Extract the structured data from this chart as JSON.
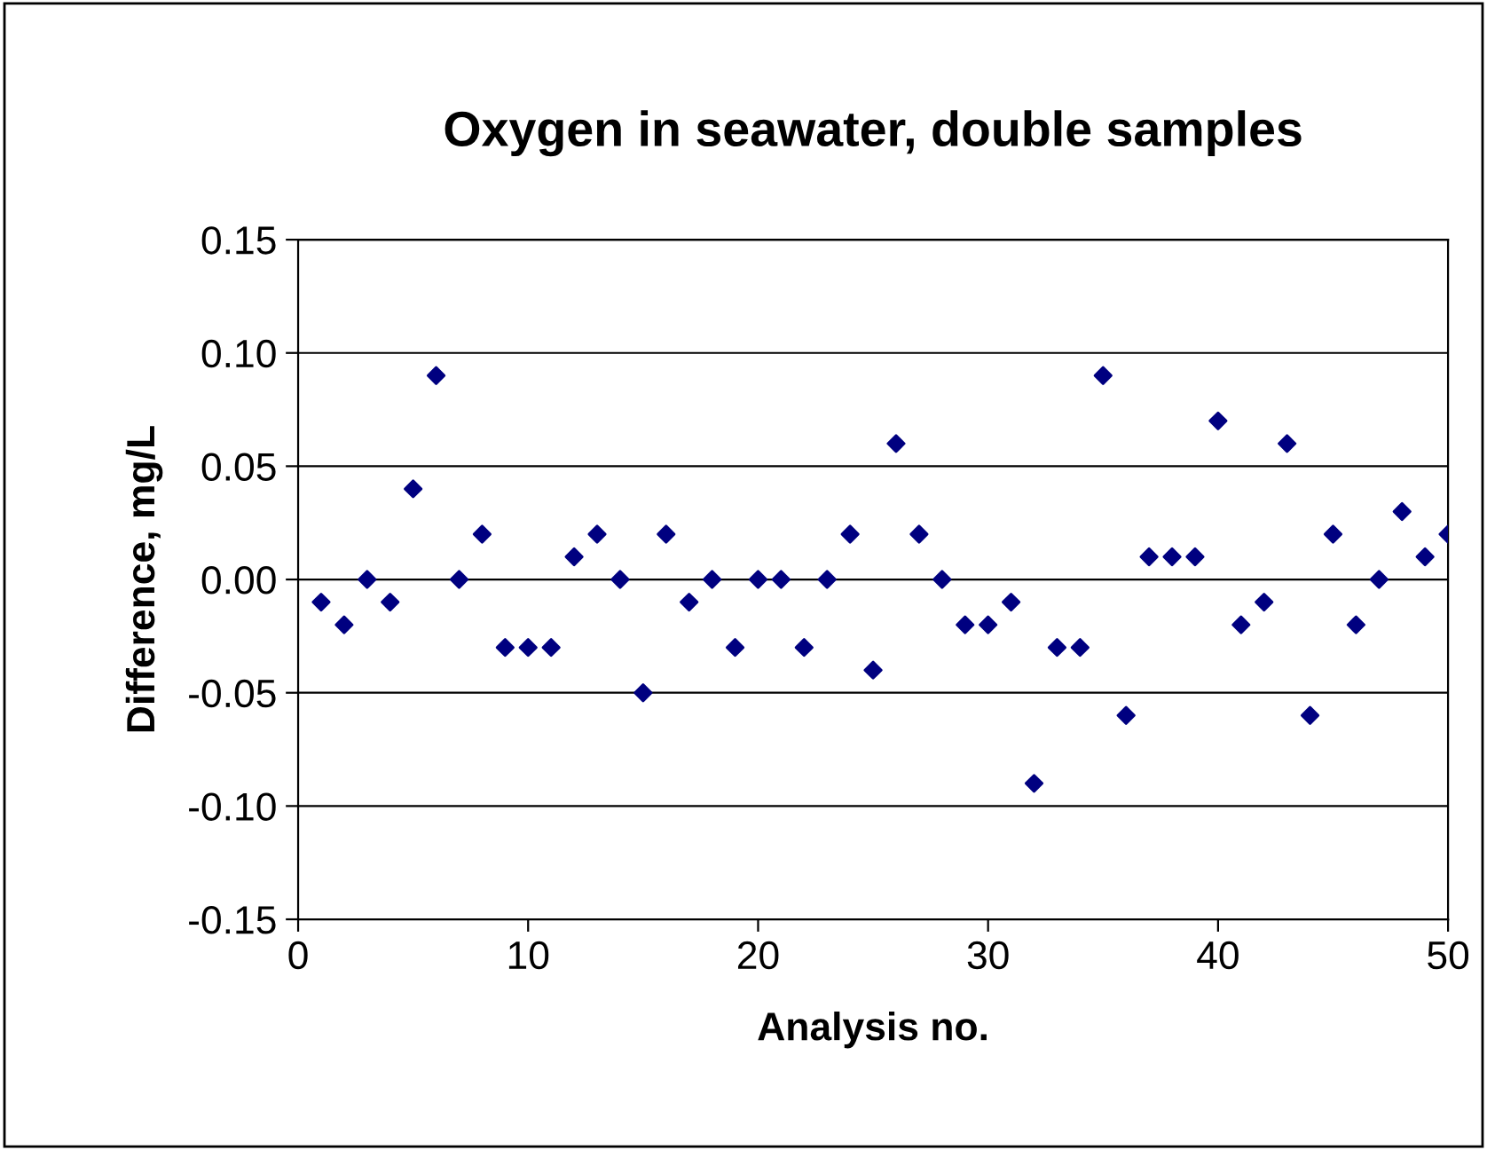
{
  "chart_data": {
    "type": "scatter",
    "title": "Oxygen in seawater, double samples",
    "xlabel": "Analysis no.",
    "ylabel": "Difference, mg/L",
    "x": [
      1,
      2,
      3,
      4,
      5,
      6,
      7,
      8,
      9,
      10,
      11,
      12,
      13,
      14,
      15,
      16,
      17,
      18,
      19,
      20,
      21,
      22,
      23,
      24,
      25,
      26,
      27,
      28,
      29,
      30,
      31,
      32,
      33,
      34,
      35,
      36,
      37,
      38,
      39,
      40,
      41,
      42,
      43,
      44,
      45,
      46,
      47,
      48,
      49,
      50
    ],
    "series": [
      {
        "color": "#000080",
        "values": [
          -0.01,
          -0.02,
          0,
          -0.01,
          0.04,
          0.09,
          0,
          0.02,
          -0.03,
          -0.03,
          -0.03,
          0.01,
          0.02,
          0,
          -0.05,
          0.02,
          -0.01,
          0,
          -0.03,
          0,
          0,
          -0.03,
          0,
          0.02,
          -0.04,
          0.06,
          0.02,
          0,
          -0.02,
          -0.02,
          -0.01,
          -0.09,
          -0.03,
          -0.03,
          0.09,
          -0.06,
          0.01,
          0.01,
          0.01,
          0.07,
          -0.02,
          -0.01,
          0.06,
          -0.06,
          0.02,
          -0.02,
          0,
          0.03,
          0.01,
          0.02
        ]
      }
    ],
    "xlim": [
      0,
      50
    ],
    "xticks": [
      0,
      10,
      20,
      30,
      40,
      50
    ],
    "ylim": [
      -0.15,
      0.15
    ],
    "yticks": [
      {
        "value": -0.15,
        "label": "-0.15"
      },
      {
        "value": -0.1,
        "label": "-0.10"
      },
      {
        "value": -0.05,
        "label": "-0.05"
      },
      {
        "value": 0,
        "label": "0.00"
      },
      {
        "value": 0.05,
        "label": "0.05"
      },
      {
        "value": 0.1,
        "label": "0.10"
      },
      {
        "value": 0.15,
        "label": "0.15"
      }
    ],
    "grid": "y",
    "marker": "diamond",
    "legend": false
  }
}
